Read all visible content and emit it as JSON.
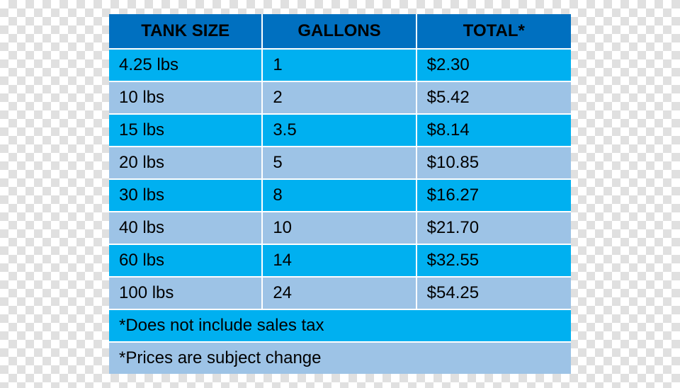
{
  "table": {
    "type": "table",
    "header_bg_color": "#0070c0",
    "row_odd_bg_color": "#00b0f0",
    "row_even_bg_color": "#9dc3e6",
    "footer_odd_bg_color": "#00b0f0",
    "footer_even_bg_color": "#9dc3e6",
    "border_color": "#ffffff",
    "text_color": "#000000",
    "header_fontsize": 24,
    "cell_fontsize": 24,
    "columns": [
      "TANK SIZE",
      "GALLONS",
      "TOTAL*"
    ],
    "rows": [
      [
        "4.25 lbs",
        "1",
        "$2.30"
      ],
      [
        "10 lbs",
        "2",
        "$5.42"
      ],
      [
        "15 lbs",
        "3.5",
        "$8.14"
      ],
      [
        "20 lbs",
        "5",
        "$10.85"
      ],
      [
        "30 lbs",
        "8",
        "$16.27"
      ],
      [
        "40 lbs",
        "10",
        "$21.70"
      ],
      [
        "60 lbs",
        "14",
        "$32.55"
      ],
      [
        "100 lbs",
        "24",
        "$54.25"
      ]
    ],
    "footnotes": [
      "*Does not include sales tax",
      "*Prices are subject change"
    ]
  }
}
